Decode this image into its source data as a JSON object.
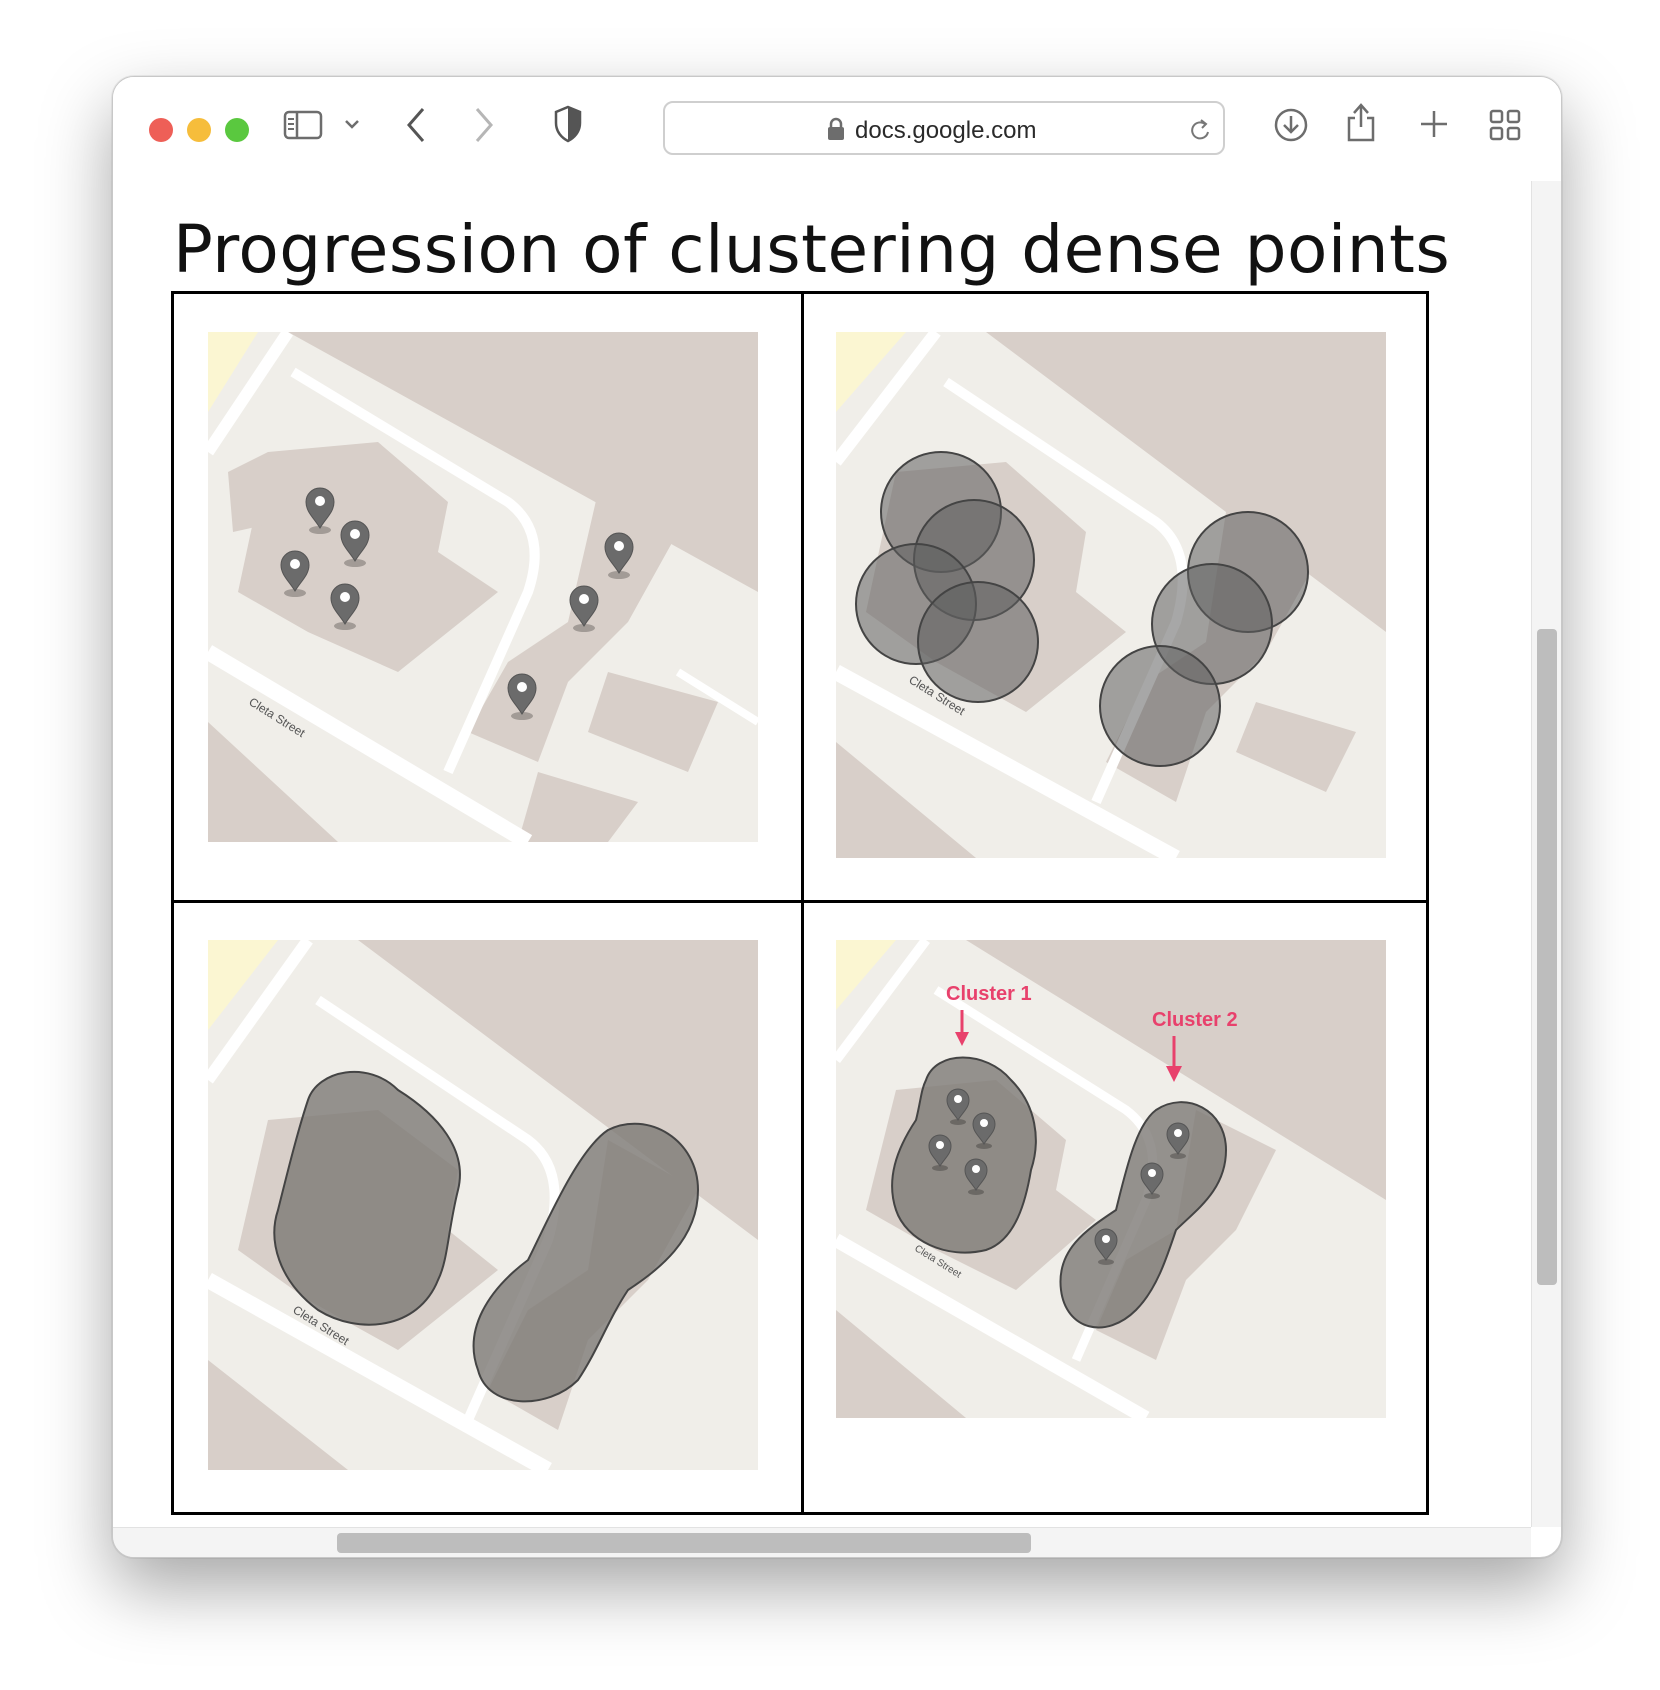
{
  "browser": {
    "url": "docs.google.com",
    "traffic_lights": {
      "close": "#ee5f57",
      "minimize": "#f6bd3b",
      "maximize": "#5ac83f"
    }
  },
  "icons": [
    "sidebar-icon",
    "chevron-down-icon",
    "back-icon",
    "forward-icon",
    "shield-icon",
    "lock-icon",
    "reload-icon",
    "download-icon",
    "share-icon",
    "new-tab-icon",
    "tab-overview-icon",
    "map-pin-icon"
  ],
  "document": {
    "title": "Progression of clustering dense points",
    "panels": [
      {
        "street_label": "Cleta Street"
      },
      {
        "street_label": "Cleta Street"
      },
      {
        "street_label": "Cleta Street"
      },
      {
        "street_label": "Cleta Street",
        "cluster_labels": [
          "Cluster 1",
          "Cluster 2"
        ]
      }
    ]
  },
  "colors": {
    "annotation": "#e8416c",
    "overlay": "#5e5e5e",
    "map_bg": "#f0eee9",
    "building": "#d8cfc9"
  }
}
